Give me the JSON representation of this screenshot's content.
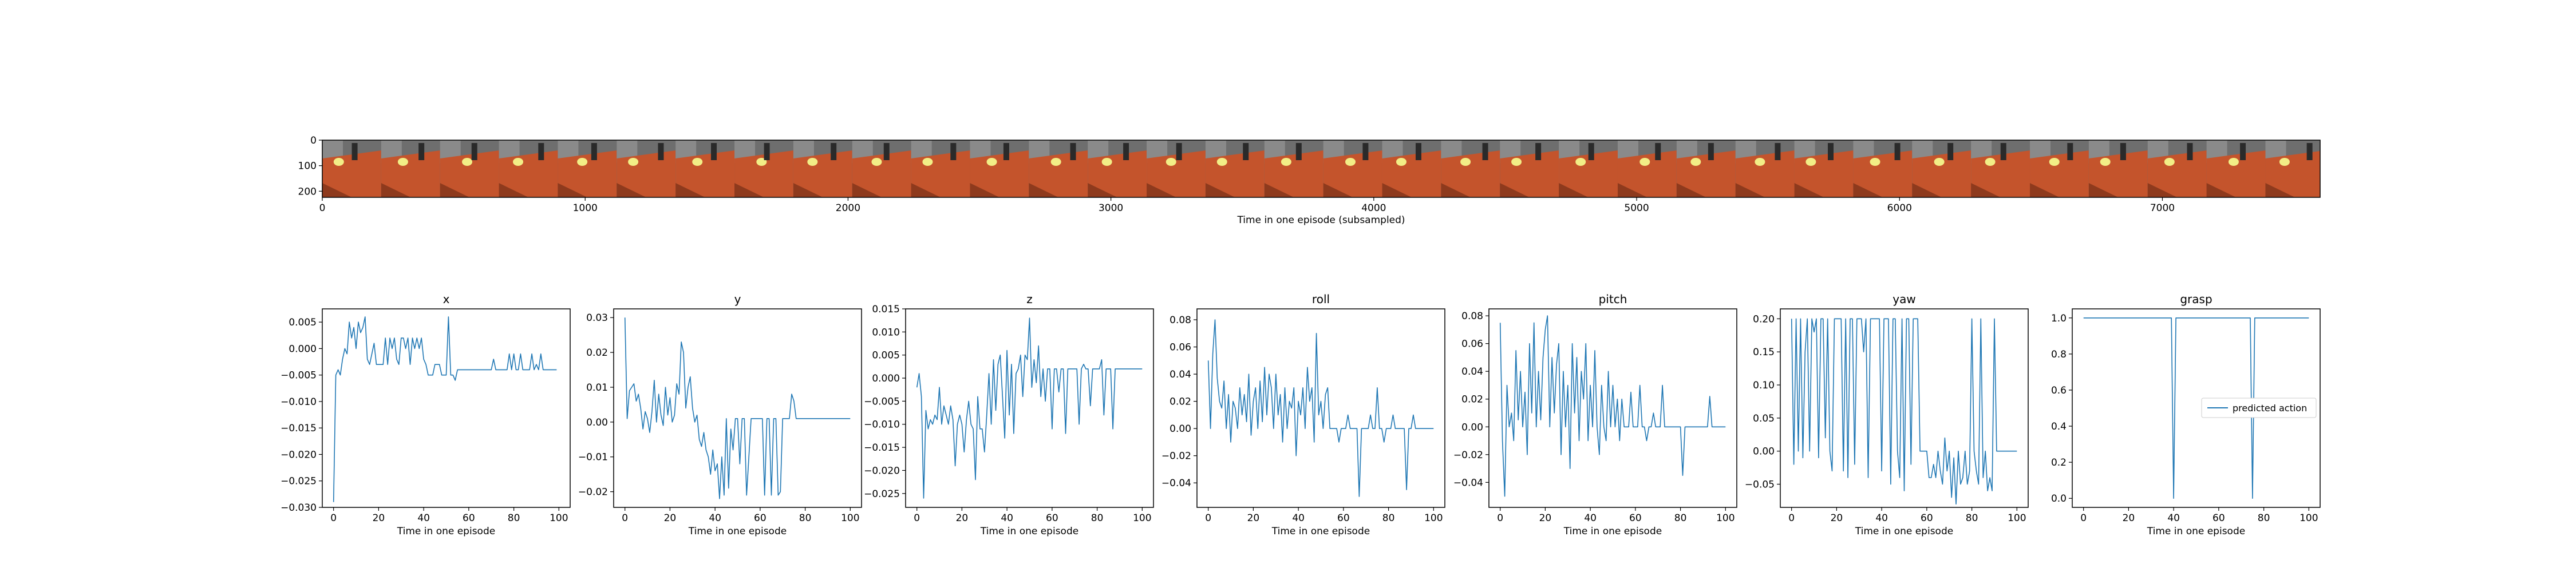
{
  "image_strip": {
    "xlabel": "Time in one episode (subsampled)",
    "x_ticks": [
      0,
      1000,
      2000,
      3000,
      4000,
      5000,
      6000,
      7000
    ],
    "xlim": [
      0,
      7600
    ],
    "y_ticks": [
      0,
      100,
      200
    ],
    "ylim": [
      0,
      224
    ],
    "frame_count": 34,
    "colors": {
      "table": "#c4542c",
      "table_dark": "#8e3a1d",
      "background": "#6e6e6e",
      "object": "#f2ee86"
    }
  },
  "legend": {
    "label": "predicted action",
    "placement": "center-right",
    "panel": "grasp"
  },
  "line_color": "#1f77b4",
  "chart_data": [
    {
      "type": "line",
      "title": "x",
      "xlabel": "Time in one episode",
      "xlim": [
        -5,
        105
      ],
      "ylim": [
        -0.03,
        0.0075
      ],
      "x_ticks": [
        0,
        20,
        40,
        60,
        80,
        100
      ],
      "y_ticks": [
        0.005,
        0.0,
        -0.005,
        -0.01,
        -0.015,
        -0.02,
        -0.025,
        -0.03
      ],
      "y_tick_labels": [
        "0.005",
        "0.000",
        "−0.005",
        "−0.010",
        "−0.015",
        "−0.020",
        "−0.025",
        "−0.030"
      ],
      "values": [
        -0.029,
        -0.005,
        -0.004,
        -0.005,
        -0.002,
        0.0,
        -0.001,
        0.005,
        0.002,
        0.004,
        0.0,
        0.005,
        0.003,
        0.004,
        0.006,
        -0.002,
        -0.003,
        -0.001,
        0.001,
        -0.003,
        -0.003,
        -0.003,
        -0.003,
        0.002,
        -0.003,
        0.002,
        0.0,
        0.002,
        -0.002,
        -0.003,
        0.002,
        0.002,
        0.0,
        0.002,
        -0.003,
        0.002,
        0.0,
        0.002,
        0.0,
        0.002,
        -0.002,
        -0.003,
        -0.005,
        -0.005,
        -0.005,
        -0.003,
        -0.003,
        -0.003,
        -0.005,
        -0.005,
        -0.005,
        0.006,
        -0.005,
        -0.005,
        -0.006,
        -0.004,
        -0.004,
        -0.004,
        -0.004,
        -0.004,
        -0.004,
        -0.004,
        -0.004,
        -0.004,
        -0.004,
        -0.004,
        -0.004,
        -0.004,
        -0.004,
        -0.004,
        -0.004,
        -0.002,
        -0.004,
        -0.004,
        -0.004,
        -0.004,
        -0.004,
        -0.004,
        -0.001,
        -0.004,
        -0.001,
        -0.004,
        -0.004,
        -0.001,
        -0.004,
        -0.004,
        -0.004,
        -0.004,
        -0.001,
        -0.004,
        -0.003,
        -0.004,
        -0.001,
        -0.004,
        -0.004,
        -0.004,
        -0.004,
        -0.004,
        -0.004,
        -0.004
      ]
    },
    {
      "type": "line",
      "title": "y",
      "xlabel": "Time in one episode",
      "xlim": [
        -5,
        105
      ],
      "ylim": [
        -0.0245,
        0.0325
      ],
      "x_ticks": [
        0,
        20,
        40,
        60,
        80,
        100
      ],
      "y_ticks": [
        0.03,
        0.02,
        0.01,
        0.0,
        -0.01,
        -0.02
      ],
      "y_tick_labels": [
        "0.03",
        "0.02",
        "0.01",
        "0.00",
        "−0.01",
        "−0.02"
      ],
      "values": [
        0.03,
        0.001,
        0.009,
        0.01,
        0.011,
        0.006,
        0.008,
        0.004,
        -0.002,
        0.003,
        0.001,
        -0.003,
        0.003,
        0.012,
        0.0,
        0.008,
        0.002,
        -0.001,
        0.01,
        0.002,
        0.007,
        0.0,
        0.002,
        0.011,
        0.008,
        0.023,
        0.02,
        0.004,
        0.01,
        0.013,
        0.004,
        0.0,
        0.002,
        -0.005,
        -0.007,
        -0.003,
        -0.008,
        -0.01,
        -0.015,
        -0.008,
        -0.014,
        -0.012,
        -0.022,
        -0.01,
        -0.021,
        0.001,
        -0.019,
        -0.002,
        -0.008,
        0.001,
        0.001,
        -0.012,
        0.001,
        0.001,
        -0.021,
        -0.01,
        0.001,
        0.001,
        0.001,
        0.001,
        0.001,
        0.001,
        -0.021,
        0.001,
        0.001,
        -0.021,
        0.001,
        0.001,
        -0.021,
        -0.02,
        0.001,
        0.001,
        0.001,
        0.001,
        0.008,
        0.006,
        0.001,
        0.001,
        0.001,
        0.001,
        0.001,
        0.001,
        0.001,
        0.001,
        0.001,
        0.001,
        0.001,
        0.001,
        0.001,
        0.001,
        0.001,
        0.001,
        0.001,
        0.001,
        0.001,
        0.001,
        0.001,
        0.001,
        0.001,
        0.001,
        0.001
      ]
    },
    {
      "type": "line",
      "title": "z",
      "xlabel": "Time in one episode",
      "xlim": [
        -5,
        105
      ],
      "ylim": [
        -0.028,
        0.015
      ],
      "x_ticks": [
        0,
        20,
        40,
        60,
        80,
        100
      ],
      "y_ticks": [
        0.015,
        0.01,
        0.005,
        0.0,
        -0.005,
        -0.01,
        -0.015,
        -0.02,
        -0.025
      ],
      "y_tick_labels": [
        "0.015",
        "0.010",
        "0.005",
        "0.000",
        "−0.005",
        "−0.010",
        "−0.015",
        "−0.020",
        "−0.025"
      ],
      "values": [
        -0.002,
        0.001,
        -0.004,
        -0.026,
        -0.007,
        -0.011,
        -0.009,
        -0.01,
        -0.008,
        -0.009,
        -0.002,
        -0.01,
        -0.006,
        -0.008,
        -0.01,
        -0.006,
        -0.009,
        -0.019,
        -0.01,
        -0.008,
        -0.01,
        -0.016,
        -0.009,
        -0.005,
        -0.01,
        -0.011,
        -0.022,
        -0.004,
        -0.011,
        -0.011,
        -0.016,
        -0.008,
        0.001,
        -0.01,
        0.004,
        -0.007,
        0.003,
        0.005,
        -0.004,
        -0.013,
        0.006,
        -0.008,
        0.003,
        -0.012,
        0.001,
        0.002,
        0.005,
        -0.004,
        0.005,
        0.004,
        0.013,
        -0.002,
        0.004,
        -0.001,
        0.007,
        -0.004,
        0.002,
        -0.005,
        0.002,
        0.002,
        -0.011,
        0.002,
        0.002,
        -0.003,
        0.002,
        0.002,
        -0.012,
        0.002,
        0.002,
        0.002,
        0.002,
        0.002,
        -0.01,
        0.002,
        0.003,
        0.002,
        0.002,
        -0.006,
        0.002,
        0.002,
        0.002,
        0.002,
        0.004,
        -0.008,
        0.002,
        0.002,
        0.002,
        -0.011,
        0.002,
        0.002,
        0.002,
        0.002,
        0.002,
        0.002,
        0.002,
        0.002,
        0.002,
        0.002,
        0.002,
        0.002,
        0.002
      ]
    },
    {
      "type": "line",
      "title": "roll",
      "xlabel": "Time in one episode",
      "xlim": [
        -5,
        105
      ],
      "ylim": [
        -0.058,
        0.088
      ],
      "x_ticks": [
        0,
        20,
        40,
        60,
        80,
        100
      ],
      "y_ticks": [
        0.08,
        0.06,
        0.04,
        0.02,
        0.0,
        -0.02,
        -0.04
      ],
      "y_tick_labels": [
        "0.08",
        "0.06",
        "0.04",
        "0.02",
        "0.00",
        "−0.02",
        "−0.04"
      ],
      "values": [
        0.05,
        0.0,
        0.055,
        0.08,
        0.037,
        0.02,
        0.015,
        0.035,
        0.0,
        0.025,
        -0.01,
        0.02,
        0.015,
        0.0,
        0.03,
        0.01,
        0.025,
        0.005,
        0.04,
        -0.005,
        0.02,
        0.03,
        0.0,
        0.035,
        0.005,
        0.045,
        0.01,
        0.04,
        0.03,
        0.0,
        0.04,
        0.01,
        0.025,
        -0.01,
        0.03,
        0.0,
        0.02,
        0.015,
        0.03,
        -0.02,
        0.02,
        0.01,
        0.03,
        0.0,
        0.045,
        0.02,
        0.03,
        -0.01,
        0.07,
        0.01,
        0.02,
        0.0,
        0.025,
        0.03,
        0.0,
        0.0,
        0.0,
        0.0,
        -0.01,
        0.0,
        0.0,
        0.0,
        0.01,
        0.0,
        0.0,
        0.0,
        0.0,
        -0.05,
        0.0,
        0.0,
        0.0,
        0.0,
        0.01,
        0.0,
        0.0,
        0.03,
        0.0,
        0.0,
        -0.01,
        0.0,
        0.0,
        0.0,
        0.01,
        0.0,
        0.0,
        0.0,
        0.0,
        0.0,
        -0.045,
        0.0,
        0.0,
        0.01,
        0.0,
        0.0,
        0.0,
        0.0,
        0.0,
        0.0,
        0.0,
        0.0,
        0.0
      ]
    },
    {
      "type": "line",
      "title": "pitch",
      "xlabel": "Time in one episode",
      "xlim": [
        -5,
        105
      ],
      "ylim": [
        -0.058,
        0.085
      ],
      "x_ticks": [
        0,
        20,
        40,
        60,
        80,
        100
      ],
      "y_ticks": [
        0.08,
        0.06,
        0.04,
        0.02,
        0.0,
        -0.02,
        -0.04
      ],
      "y_tick_labels": [
        "0.08",
        "0.06",
        "0.04",
        "0.02",
        "0.00",
        "−0.02",
        "−0.04"
      ],
      "values": [
        0.075,
        -0.01,
        -0.05,
        0.03,
        0.0,
        0.01,
        -0.01,
        0.055,
        0.005,
        0.04,
        0.0,
        0.025,
        -0.02,
        0.06,
        0.01,
        0.075,
        0.0,
        0.04,
        0.005,
        0.05,
        0.07,
        0.08,
        0.0,
        0.05,
        0.01,
        0.045,
        0.06,
        -0.02,
        0.04,
        0.0,
        0.03,
        -0.03,
        0.06,
        0.01,
        0.05,
        -0.01,
        0.04,
        0.02,
        0.06,
        -0.01,
        0.03,
        0.0,
        0.055,
        0.0,
        -0.02,
        0.03,
        0.0,
        -0.01,
        0.04,
        0.0,
        0.03,
        0.0,
        0.02,
        -0.01,
        0.02,
        0.0,
        0.0,
        0.0,
        0.025,
        0.0,
        0.0,
        0.0,
        0.03,
        0.0,
        0.0,
        -0.01,
        0.0,
        0.0,
        0.01,
        0.0,
        0.0,
        0.0,
        0.03,
        0.0,
        0.0,
        0.0,
        0.0,
        0.0,
        0.0,
        0.0,
        0.0,
        -0.035,
        0.0,
        0.0,
        0.0,
        0.0,
        0.0,
        0.0,
        0.0,
        0.0,
        0.0,
        0.0,
        0.0,
        0.022,
        0.0,
        0.0,
        0.0,
        0.0,
        0.0,
        0.0,
        0.0
      ]
    },
    {
      "type": "line",
      "title": "yaw",
      "xlabel": "Time in one episode",
      "xlim": [
        -5,
        105
      ],
      "ylim": [
        -0.085,
        0.215
      ],
      "x_ticks": [
        0,
        20,
        40,
        60,
        80,
        100
      ],
      "y_ticks": [
        0.2,
        0.15,
        0.1,
        0.05,
        0.0,
        -0.05
      ],
      "y_tick_labels": [
        "0.20",
        "0.15",
        "0.10",
        "0.05",
        "0.00",
        "−0.05"
      ],
      "values": [
        0.2,
        -0.02,
        0.2,
        0.0,
        0.2,
        -0.01,
        0.15,
        0.2,
        0.0,
        0.2,
        0.18,
        0.2,
        -0.01,
        0.2,
        0.2,
        0.02,
        0.2,
        0.0,
        -0.03,
        0.2,
        0.2,
        0.2,
        0.2,
        -0.03,
        0.2,
        -0.04,
        0.2,
        0.2,
        -0.02,
        0.2,
        0.2,
        0.2,
        0.15,
        0.2,
        -0.04,
        0.2,
        0.2,
        0.2,
        0.2,
        0.2,
        -0.03,
        0.2,
        0.2,
        0.2,
        -0.05,
        0.2,
        0.2,
        0.0,
        -0.04,
        0.2,
        -0.06,
        0.2,
        0.2,
        -0.02,
        0.2,
        0.2,
        0.2,
        0.0,
        0.0,
        0.0,
        0.0,
        -0.04,
        -0.04,
        -0.02,
        -0.04,
        0.0,
        -0.03,
        -0.05,
        0.02,
        -0.03,
        0.0,
        -0.07,
        -0.01,
        -0.08,
        0.0,
        -0.05,
        -0.04,
        0.0,
        -0.05,
        -0.03,
        0.2,
        0.0,
        -0.03,
        -0.05,
        0.2,
        -0.04,
        0.0,
        -0.06,
        -0.04,
        -0.06,
        0.2,
        0.0,
        0.0,
        0.0,
        0.0,
        0.0,
        0.0,
        0.0,
        0.0,
        0.0,
        0.0
      ]
    },
    {
      "type": "line",
      "title": "grasp",
      "xlabel": "Time in one episode",
      "xlim": [
        -5,
        105
      ],
      "ylim": [
        -0.05,
        1.05
      ],
      "x_ticks": [
        0,
        20,
        40,
        60,
        80,
        100
      ],
      "y_ticks": [
        1.0,
        0.8,
        0.6,
        0.4,
        0.2,
        0.0
      ],
      "y_tick_labels": [
        "1.0",
        "0.8",
        "0.6",
        "0.4",
        "0.2",
        "0.0"
      ],
      "series_name": "predicted action",
      "values": [
        1,
        1,
        1,
        1,
        1,
        1,
        1,
        1,
        1,
        1,
        1,
        1,
        1,
        1,
        1,
        1,
        1,
        1,
        1,
        1,
        1,
        1,
        1,
        1,
        1,
        1,
        1,
        1,
        1,
        1,
        1,
        1,
        1,
        1,
        1,
        1,
        1,
        1,
        1,
        1,
        0,
        1,
        1,
        1,
        1,
        1,
        1,
        1,
        1,
        1,
        1,
        1,
        1,
        1,
        1,
        1,
        1,
        1,
        1,
        1,
        1,
        1,
        1,
        1,
        1,
        1,
        1,
        1,
        1,
        1,
        1,
        1,
        1,
        1,
        1,
        0,
        1,
        1,
        1,
        1,
        1,
        1,
        1,
        1,
        1,
        1,
        1,
        1,
        1,
        1,
        1,
        1,
        1,
        1,
        1,
        1,
        1,
        1,
        1,
        1,
        1
      ]
    }
  ]
}
